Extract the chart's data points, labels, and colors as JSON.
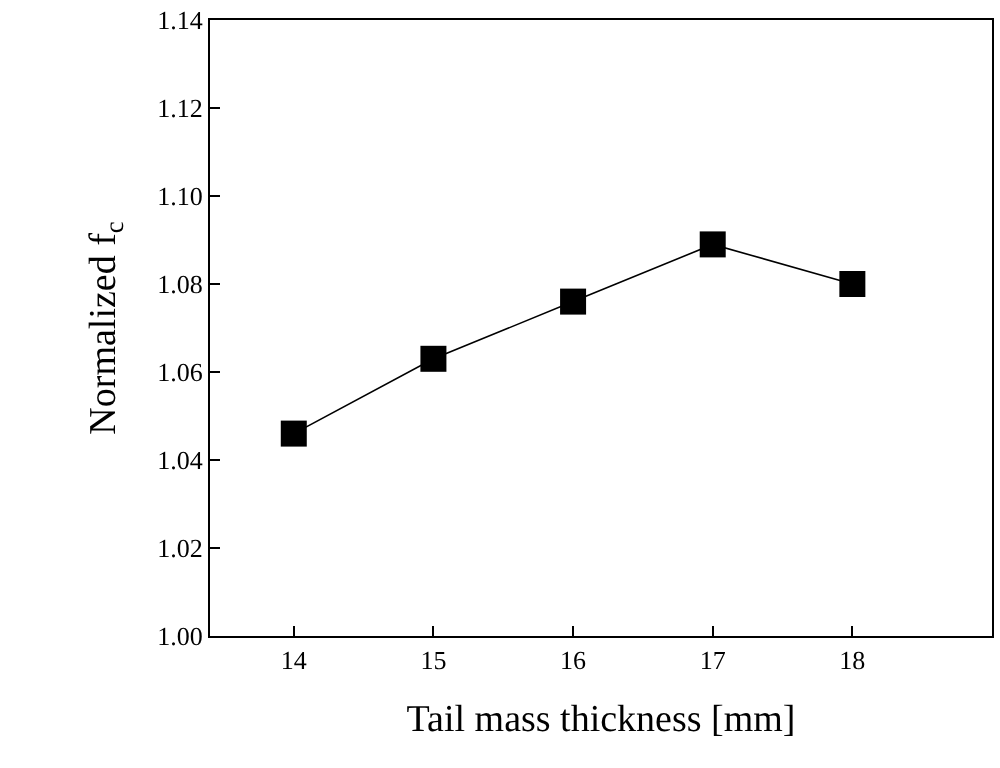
{
  "chart_data": {
    "type": "line",
    "xlabel": "Tail mass thickness [mm]",
    "ylabel": "Normalized f$_{c}$",
    "x": [
      14,
      15,
      16,
      17,
      18
    ],
    "series": [
      {
        "color": "#000000",
        "values": [
          1.046,
          1.063,
          1.076,
          1.089,
          1.08
        ]
      }
    ],
    "xlim": [
      13.4,
      19
    ],
    "xticks": [
      14,
      15,
      16,
      17,
      18
    ],
    "ylim": [
      1.0,
      1.14
    ],
    "yticks": [
      {
        "value": 1.0,
        "label": "1.00"
      },
      {
        "value": 1.02,
        "label": "1.02"
      },
      {
        "value": 1.04,
        "label": "1.04"
      },
      {
        "value": 1.06,
        "label": "1.06"
      },
      {
        "value": 1.08,
        "label": "1.08"
      },
      {
        "value": 1.1,
        "label": "1.10"
      },
      {
        "value": 1.12,
        "label": "1.12"
      },
      {
        "value": 1.14,
        "label": "1.14"
      }
    ],
    "legend": false,
    "marker": "square",
    "line_style": "solid"
  }
}
